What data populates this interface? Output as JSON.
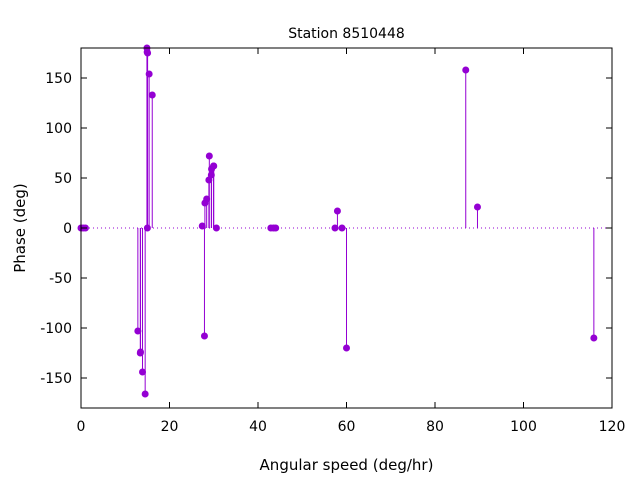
{
  "chart_data": {
    "type": "scatter",
    "title": "Station 8510448",
    "xlabel": "Angular speed (deg/hr)",
    "ylabel": "Phase (deg)",
    "xlim": [
      0,
      120
    ],
    "ylim": [
      -180,
      180
    ],
    "xticks": [
      0,
      20,
      40,
      60,
      80,
      100,
      120
    ],
    "yticks": [
      -150,
      -100,
      -50,
      0,
      50,
      100,
      150
    ],
    "grid": false,
    "zero_line": "dotted",
    "marker_color": "#9400d3",
    "series": [
      {
        "points": [
          [
            0.0,
            0
          ],
          [
            0.5,
            0
          ],
          [
            1.0,
            0
          ],
          [
            12.85,
            -103
          ],
          [
            13.4,
            -125
          ],
          [
            13.45,
            -124
          ],
          [
            13.9,
            -144
          ],
          [
            14.5,
            -166
          ],
          [
            14.9,
            180
          ],
          [
            14.95,
            176
          ],
          [
            15.0,
            0
          ],
          [
            15.05,
            175
          ],
          [
            15.4,
            154
          ],
          [
            16.1,
            133
          ],
          [
            27.4,
            2
          ],
          [
            27.9,
            -108
          ],
          [
            28.0,
            25
          ],
          [
            28.4,
            29
          ],
          [
            28.9,
            48
          ],
          [
            29.0,
            72
          ],
          [
            29.45,
            53
          ],
          [
            29.5,
            59
          ],
          [
            29.95,
            62
          ],
          [
            30.0,
            62
          ],
          [
            30.6,
            0
          ],
          [
            42.9,
            0
          ],
          [
            43.5,
            0
          ],
          [
            44.0,
            0
          ],
          [
            57.4,
            0
          ],
          [
            57.95,
            17
          ],
          [
            58.98,
            0
          ],
          [
            60.0,
            -120
          ],
          [
            86.95,
            158
          ],
          [
            89.6,
            21
          ],
          [
            115.9,
            -110
          ]
        ]
      }
    ]
  }
}
